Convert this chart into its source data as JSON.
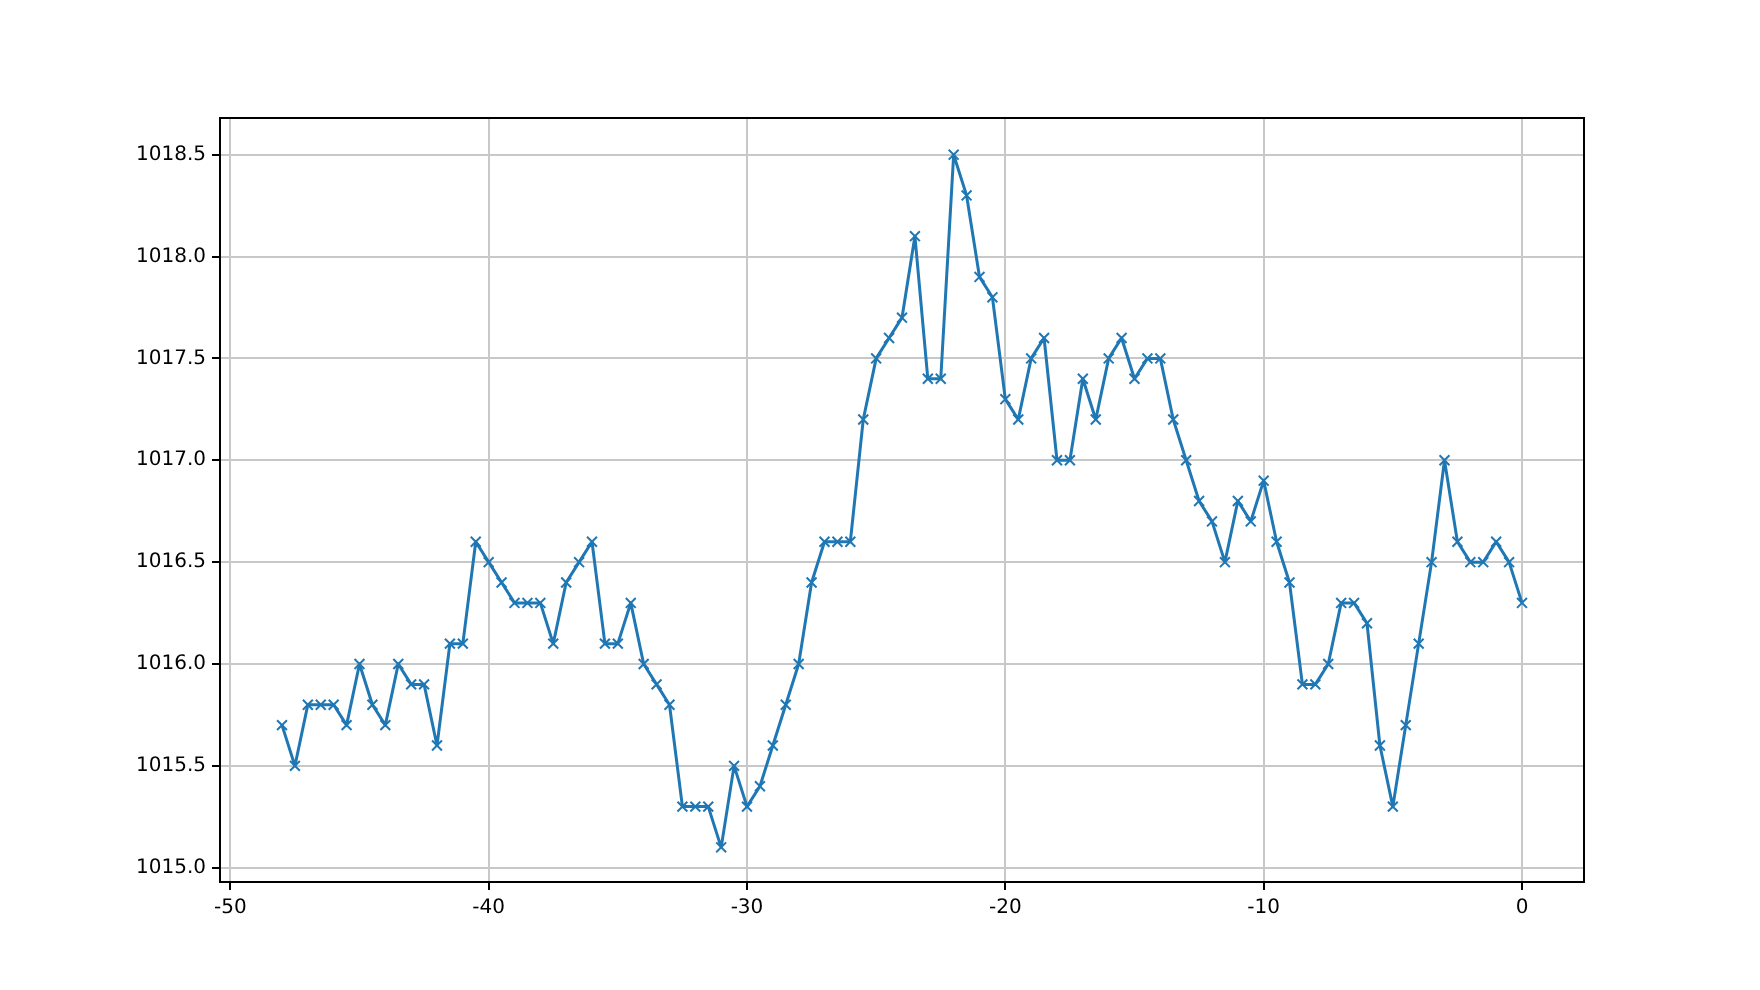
{
  "chart_data": {
    "type": "line",
    "x": [
      -48,
      -47.5,
      -47,
      -46.5,
      -46,
      -45.5,
      -45,
      -44.5,
      -44,
      -43.5,
      -43,
      -42.5,
      -42,
      -41.5,
      -41,
      -40.5,
      -40,
      -39.5,
      -39,
      -38.5,
      -38,
      -37.5,
      -37,
      -36.5,
      -36,
      -35.5,
      -35,
      -34.5,
      -34,
      -33.5,
      -33,
      -32.5,
      -32,
      -31.5,
      -31,
      -30.5,
      -30,
      -29.5,
      -29,
      -28.5,
      -28,
      -27.5,
      -27,
      -26.5,
      -26,
      -25.5,
      -25,
      -24.5,
      -24,
      -23.5,
      -23,
      -22.5,
      -22,
      -21.5,
      -21,
      -20.5,
      -20,
      -19.5,
      -19,
      -18.5,
      -18,
      -17.5,
      -17,
      -16.5,
      -16,
      -15.5,
      -15,
      -14.5,
      -14,
      -13.5,
      -13,
      -12.5,
      -12,
      -11.5,
      -11,
      -10.5,
      -10,
      -9.5,
      -9,
      -8.5,
      -8,
      -7.5,
      -7,
      -6.5,
      -6,
      -5.5,
      -5,
      -4.5,
      -4,
      -3.5,
      -3,
      -2.5,
      -2,
      -1.5,
      -1,
      -0.5,
      0
    ],
    "series": [
      {
        "color": "#1f77b4",
        "values": [
          1015.7,
          1015.5,
          1015.8,
          1015.8,
          1015.8,
          1015.7,
          1016.0,
          1015.8,
          1015.7,
          1016.0,
          1015.9,
          1015.9,
          1015.6,
          1016.1,
          1016.1,
          1016.6,
          1016.5,
          1016.4,
          1016.3,
          1016.3,
          1016.3,
          1016.1,
          1016.4,
          1016.5,
          1016.6,
          1016.1,
          1016.1,
          1016.3,
          1016.0,
          1015.9,
          1015.8,
          1015.3,
          1015.3,
          1015.3,
          1015.1,
          1015.5,
          1015.3,
          1015.4,
          1015.6,
          1015.8,
          1016.0,
          1016.4,
          1016.6,
          1016.6,
          1016.6,
          1017.2,
          1017.5,
          1017.6,
          1017.7,
          1018.1,
          1017.4,
          1017.4,
          1018.5,
          1018.3,
          1017.9,
          1017.8,
          1017.3,
          1017.2,
          1017.5,
          1017.6,
          1017.0,
          1017.0,
          1017.4,
          1017.2,
          1017.5,
          1017.6,
          1017.4,
          1017.5,
          1017.5,
          1017.2,
          1017.0,
          1016.8,
          1016.7,
          1016.5,
          1016.8,
          1016.7,
          1016.9,
          1016.6,
          1016.4,
          1015.9,
          1015.9,
          1016.0,
          1016.3,
          1016.3,
          1016.2,
          1015.6,
          1015.3,
          1015.7,
          1016.1,
          1016.5,
          1017.0,
          1016.6,
          1016.5,
          1016.5,
          1016.6,
          1016.5,
          1016.3
        ]
      }
    ],
    "xlim": [
      -50.4,
      2.4
    ],
    "xticks": [
      -50,
      -40,
      -30,
      -20,
      -10,
      0
    ],
    "ylim": [
      1014.93,
      1018.68
    ],
    "yticks": [
      {
        "value": 1015.0,
        "label": "1015.0"
      },
      {
        "value": 1015.5,
        "label": "1015.5"
      },
      {
        "value": 1016.0,
        "label": "1016.0"
      },
      {
        "value": 1016.5,
        "label": "1016.5"
      },
      {
        "value": 1017.0,
        "label": "1017.0"
      },
      {
        "value": 1017.5,
        "label": "1017.5"
      },
      {
        "value": 1018.0,
        "label": "1018.0"
      },
      {
        "value": 1018.5,
        "label": "1018.5"
      }
    ],
    "grid": true,
    "marker": "cross",
    "line_style": "solid"
  }
}
